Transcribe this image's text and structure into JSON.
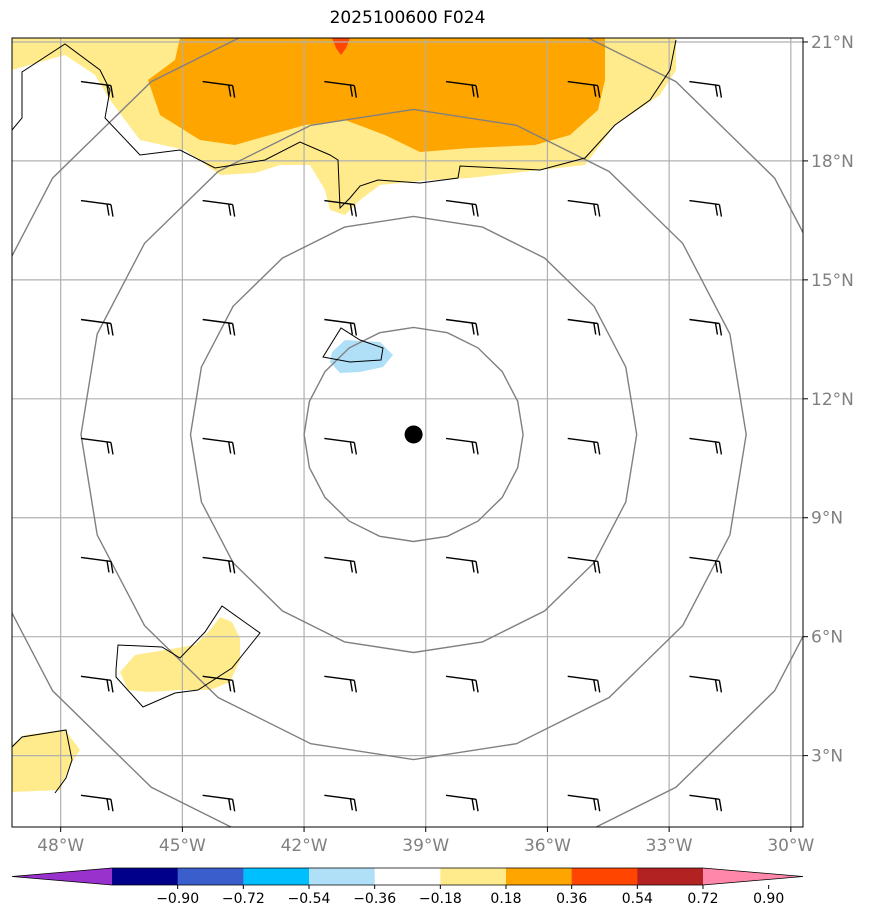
{
  "title": "2025100600 F024",
  "map": {
    "lon_range": [
      -49.2,
      -29.7
    ],
    "lat_range": [
      1.2,
      21.1
    ],
    "projection": "PlateCarree",
    "latitude_labels": [
      "3°N",
      "6°N",
      "9°N",
      "12°N",
      "15°N",
      "18°N",
      "21°N"
    ],
    "longitude_labels": [
      "48°W",
      "45°W",
      "42°W",
      "39°W",
      "36°W",
      "33°W",
      "30°W"
    ],
    "gridline_color": "#b0b0b0",
    "storm_center": {
      "lon": -39.3,
      "lat": 11.1
    },
    "range_rings_deg": [
      2.7,
      5.5,
      8.2,
      11.0
    ],
    "range_ring_color": "#808080",
    "shaded_field_colors": {
      "0.18_0.36": "#ffeb8c",
      "0.36_0.54": "#ffa500",
      "0.54_0.72": "#ff4500",
      "-0.36_-0.18": "#b0e0f8"
    },
    "wind_barbs": {
      "lons": [
        -47.5,
        -44.5,
        -41.5,
        -38.5,
        -35.5,
        -32.5
      ],
      "lats": [
        20.0,
        17.0,
        14.0,
        11.0,
        8.0,
        5.0,
        2.0
      ],
      "color": "#000000"
    }
  },
  "colorbar": {
    "levels": [
      "−0.90",
      "−0.72",
      "−0.54",
      "−0.36",
      "−0.18",
      "0.18",
      "0.36",
      "0.54",
      "0.72",
      "0.90"
    ],
    "colors": [
      "#9932cc",
      "#00008b",
      "#3a5fcd",
      "#00bfff",
      "#b0e0f8",
      "#ffffff",
      "#ffeb8c",
      "#ffa500",
      "#ff4500",
      "#b22222",
      "#ff88aa"
    ]
  }
}
